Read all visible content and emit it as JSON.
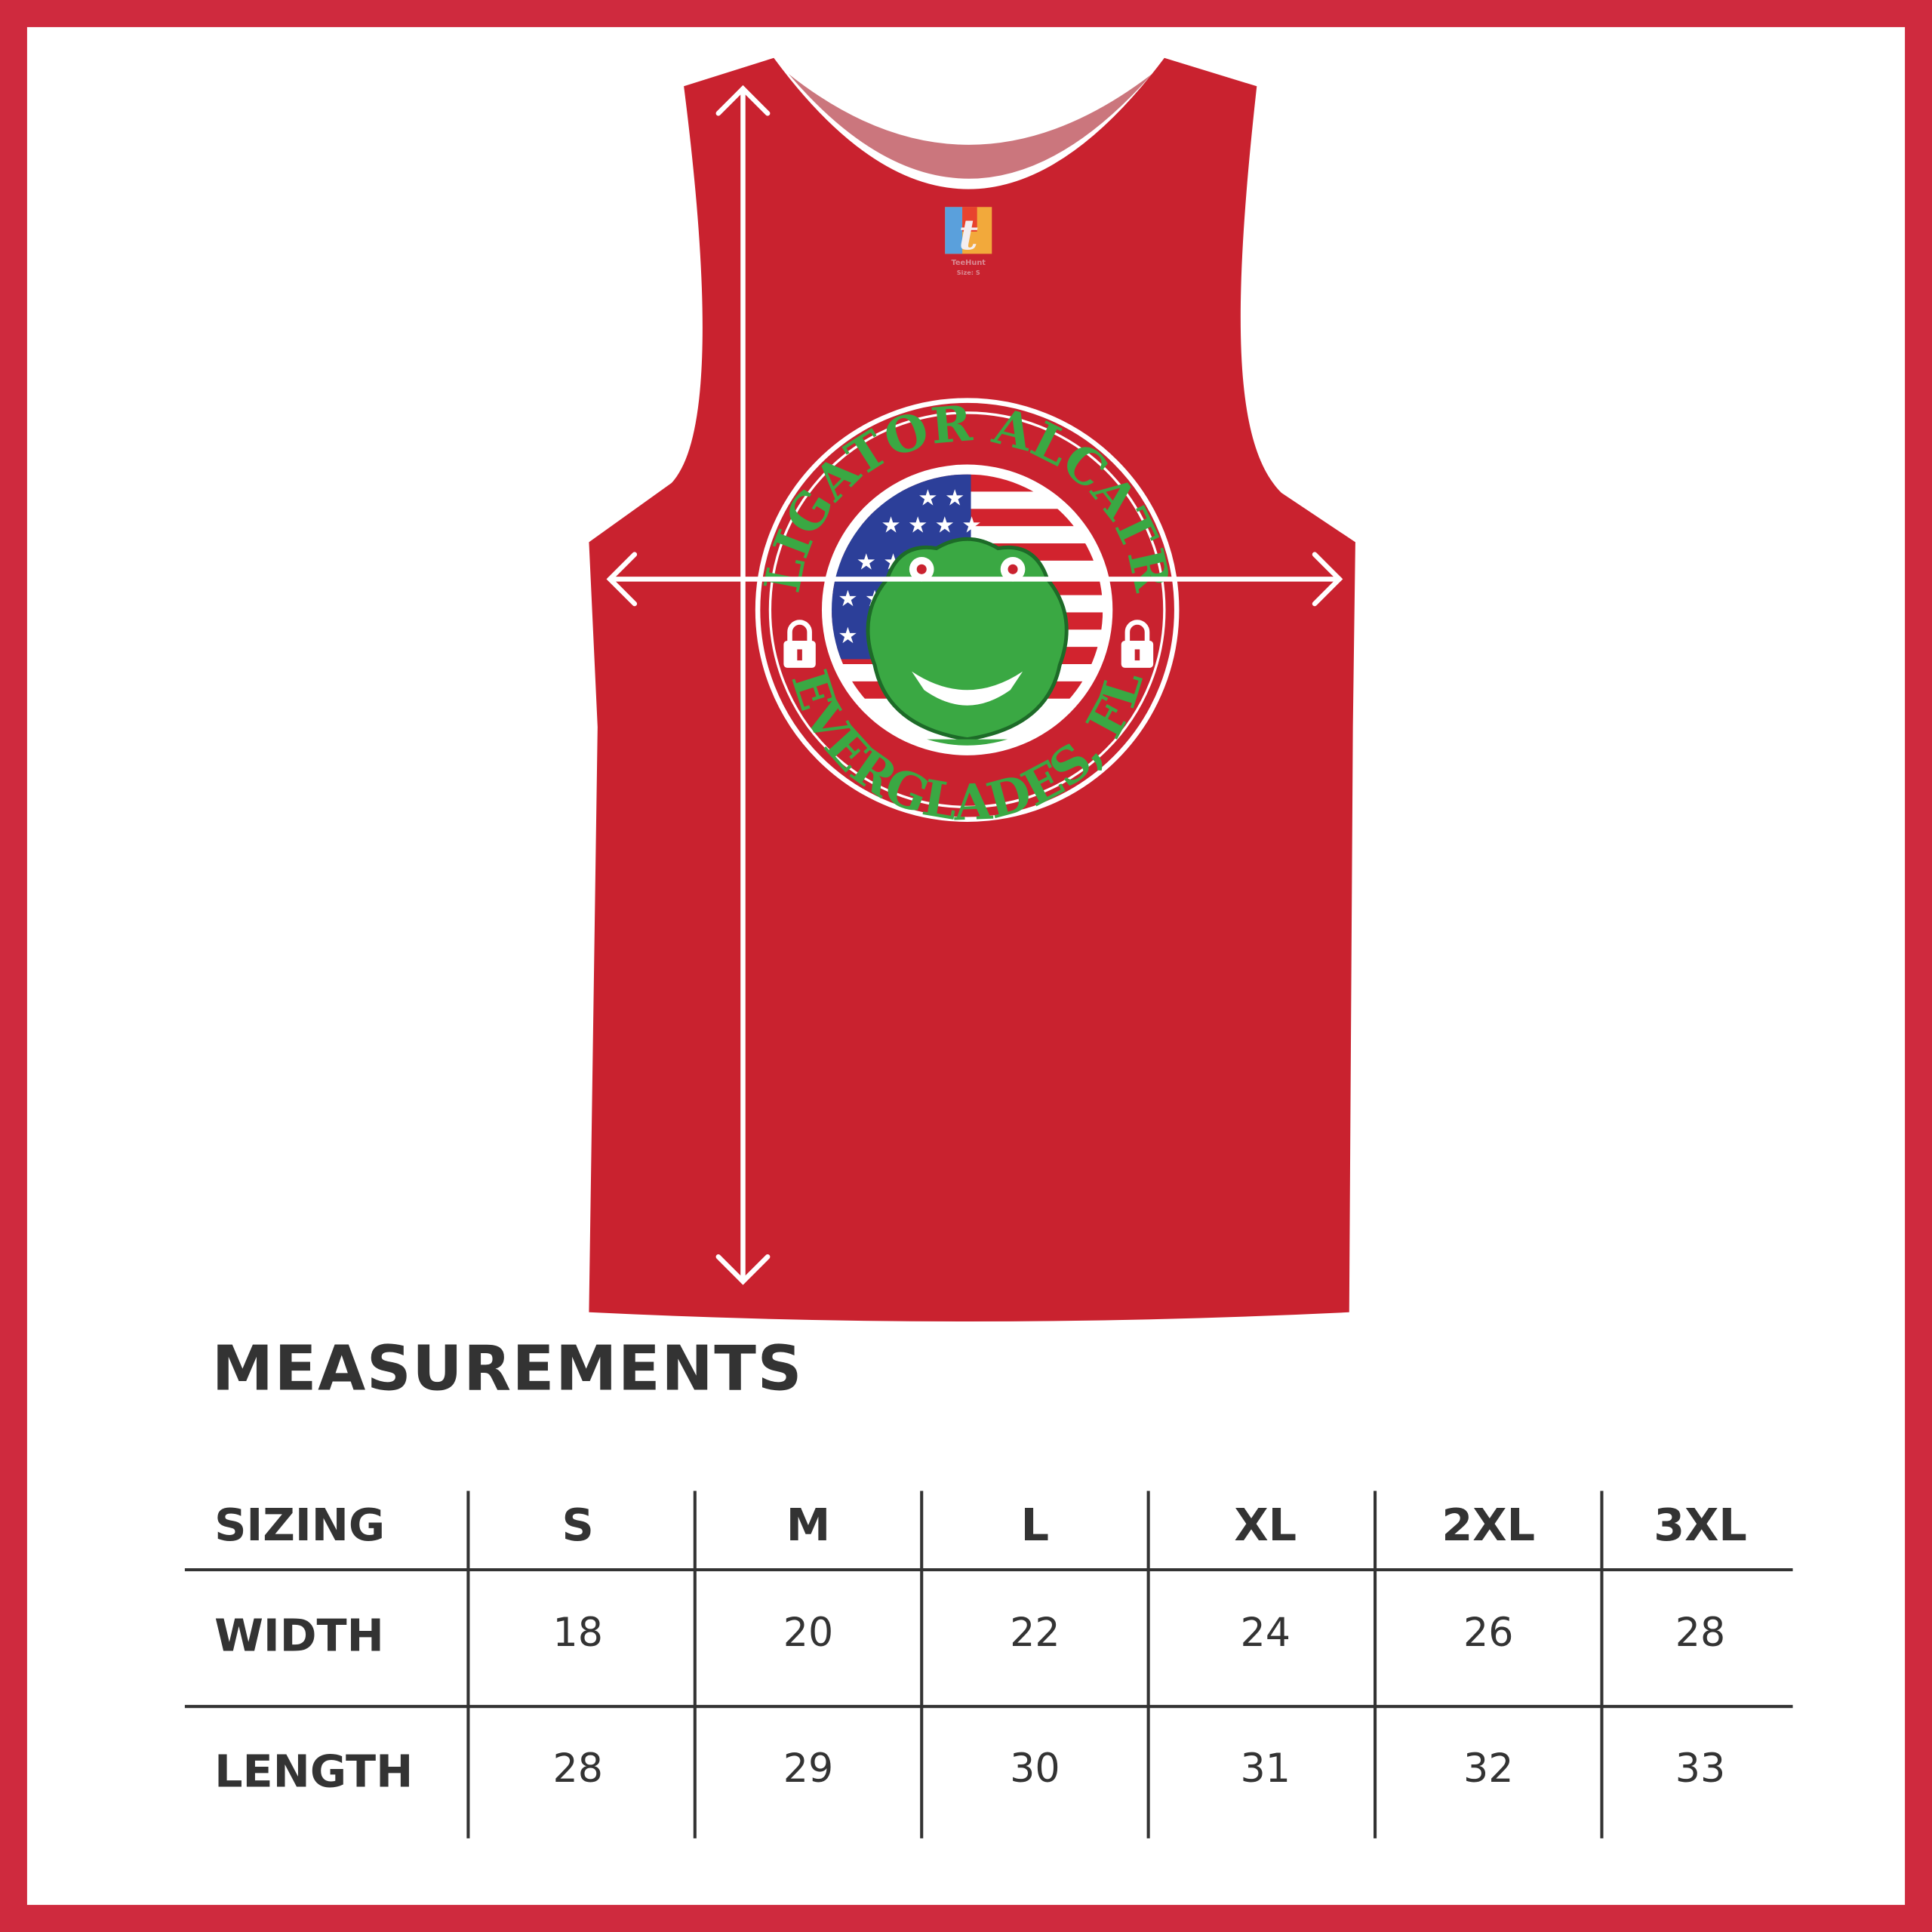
{
  "colors": {
    "border": "#cf2a3e",
    "shirt": "#c9222f",
    "logo_green": "#3aa843",
    "text": "#333333"
  },
  "product": {
    "tag": {
      "brand": "TeeHunt",
      "size": "Size: S"
    },
    "graphic": {
      "top_text": "ALLIGATOR ALCATRAZ",
      "bottom_text": "EVERGLADES, FL"
    }
  },
  "measurements": {
    "title": "MEASUREMENTS",
    "header": {
      "label": "SIZING",
      "sizes": [
        "S",
        "M",
        "L",
        "XL",
        "2XL",
        "3XL"
      ]
    },
    "rows": [
      {
        "label": "WIDTH",
        "values": [
          "18",
          "20",
          "22",
          "24",
          "26",
          "28"
        ]
      },
      {
        "label": "LENGTH",
        "values": [
          "28",
          "29",
          "30",
          "31",
          "32",
          "33"
        ]
      }
    ]
  }
}
